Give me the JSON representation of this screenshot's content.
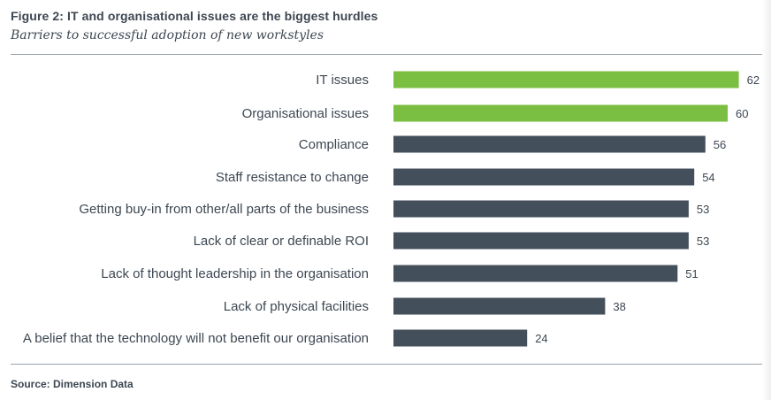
{
  "header": {
    "title": "Figure 2: IT and organisational issues are the biggest hurdles",
    "subtitle": "Barriers to successful adoption of new workstyles"
  },
  "footer": {
    "source": "Source: Dimension Data"
  },
  "colors": {
    "highlight": "#7bbf42",
    "default": "#444f5c",
    "text": "#3d4752",
    "rule": "#9aa3aa"
  },
  "chart_data": {
    "type": "bar",
    "orientation": "horizontal",
    "title": "Figure 2: IT and organisational issues are the biggest hurdles",
    "subtitle": "Barriers to successful adoption of new workstyles",
    "categories": [
      "IT issues",
      "Organisational issues",
      "Compliance",
      "Staff resistance to change",
      "Getting buy-in from other/all parts of the business",
      "Lack of clear or definable ROI",
      "Lack of thought leadership in the organisation",
      "Lack of physical facilities",
      "A belief that the technology will not benefit our organisation"
    ],
    "values": [
      62,
      60,
      56,
      54,
      53,
      53,
      51,
      38,
      24
    ],
    "highlighted": [
      true,
      true,
      false,
      false,
      false,
      false,
      false,
      false,
      false
    ],
    "data_labels": true,
    "grid": false,
    "legend": "none"
  }
}
